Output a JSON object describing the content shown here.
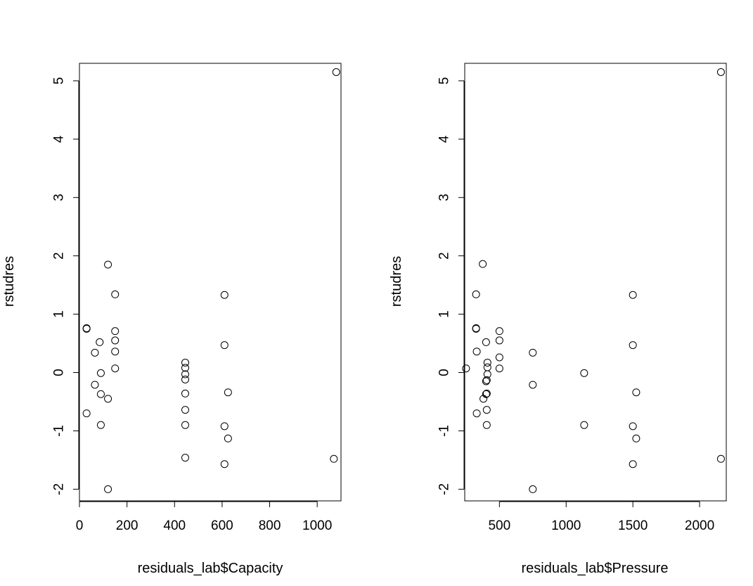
{
  "chart_data": [
    {
      "type": "scatter",
      "xlabel": "residuals_lab$Capacity",
      "ylabel": "rstudres",
      "xlim": [
        0,
        1100
      ],
      "ylim": [
        -2.2,
        5.3
      ],
      "xticks": [
        0,
        200,
        400,
        600,
        800,
        1000
      ],
      "yticks": [
        -2,
        -1,
        0,
        1,
        2,
        3,
        4,
        5
      ],
      "grid": false,
      "marker": "open-circle",
      "x": [
        1080,
        120,
        150,
        30,
        30,
        85,
        150,
        150,
        65,
        150,
        90,
        150,
        65,
        90,
        120,
        30,
        90,
        120,
        445,
        445,
        445,
        445,
        445,
        445,
        445,
        445,
        610,
        610,
        625,
        610,
        625,
        610,
        1070
      ],
      "y": [
        5.15,
        1.85,
        1.34,
        0.76,
        0.75,
        0.52,
        0.71,
        0.55,
        0.34,
        0.36,
        -0.01,
        0.07,
        -0.21,
        -0.37,
        -0.45,
        -0.7,
        -0.9,
        -2.0,
        0.17,
        0.08,
        -0.03,
        -0.12,
        -0.36,
        -0.64,
        -0.9,
        -1.46,
        1.33,
        0.47,
        -0.34,
        -0.92,
        -1.13,
        -1.57,
        -1.48
      ]
    },
    {
      "type": "scatter",
      "xlabel": "residuals_lab$Pressure",
      "ylabel": "rstudres",
      "xlim": [
        240,
        2200
      ],
      "ylim": [
        -2.2,
        5.3
      ],
      "xticks": [
        500,
        1000,
        1500,
        2000
      ],
      "yticks": [
        -2,
        -1,
        0,
        1,
        2,
        3,
        4,
        5
      ],
      "grid": false,
      "marker": "open-circle",
      "x": [
        2160,
        375,
        325,
        325,
        325,
        500,
        500,
        400,
        330,
        500,
        250,
        500,
        410,
        410,
        400,
        405,
        410,
        380,
        400,
        405,
        330,
        405,
        405,
        750,
        750,
        750,
        1135,
        1135,
        1500,
        1500,
        1525,
        1500,
        1525,
        1500,
        2160
      ],
      "y": [
        5.15,
        1.86,
        1.34,
        0.76,
        0.75,
        0.71,
        0.55,
        0.52,
        0.36,
        0.26,
        0.07,
        0.07,
        0.17,
        0.09,
        -0.15,
        -0.13,
        -0.03,
        -0.45,
        -0.37,
        -0.36,
        -0.7,
        -0.64,
        -0.9,
        0.34,
        -0.21,
        -2.0,
        -0.01,
        -0.9,
        1.33,
        0.47,
        -0.34,
        -0.92,
        -1.13,
        -1.57,
        -1.48
      ]
    }
  ]
}
